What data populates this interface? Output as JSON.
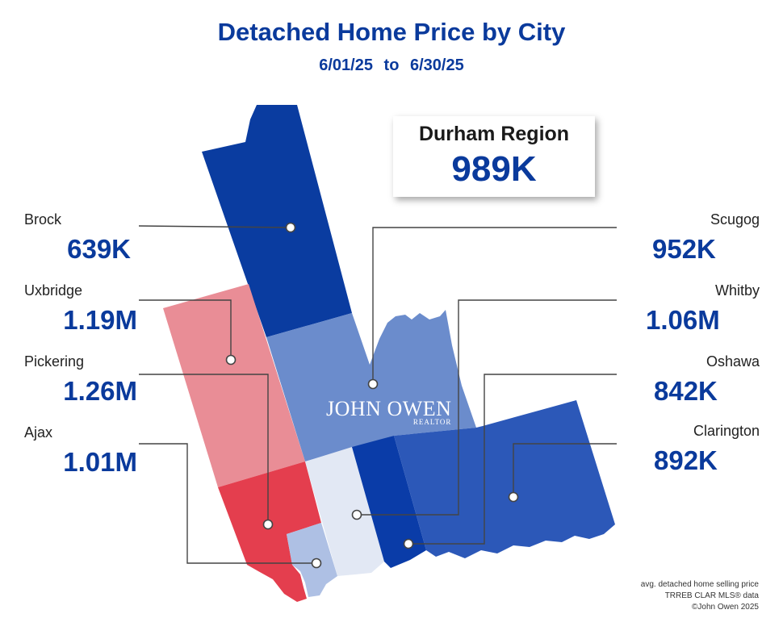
{
  "header": {
    "title": "Detached Home Price by City",
    "date_from": "6/01/25",
    "date_sep": "to",
    "date_to": "6/30/25"
  },
  "region": {
    "name": "Durham Region",
    "value": "989K"
  },
  "cities": {
    "brock": {
      "name": "Brock",
      "value": "639K",
      "color": "#0a3ca0"
    },
    "uxbridge": {
      "name": "Uxbridge",
      "value": "1.19M",
      "color": "#e98d96"
    },
    "pickering": {
      "name": "Pickering",
      "value": "1.26M",
      "color": "#e43e4e"
    },
    "ajax": {
      "name": "Ajax",
      "value": "1.01M",
      "color": "#aec0e4"
    },
    "scugog": {
      "name": "Scugog",
      "value": "952K",
      "color": "#6b8ccc"
    },
    "whitby": {
      "name": "Whitby",
      "value": "1.06M",
      "color": "#e2e8f4"
    },
    "oshawa": {
      "name": "Oshawa",
      "value": "842K",
      "color": "#0a3ca8"
    },
    "clarington": {
      "name": "Clarington",
      "value": "892K",
      "color": "#2c58b8"
    }
  },
  "logo": {
    "main": "JOHN OWEN",
    "sub": "REALTOR"
  },
  "footnote": {
    "line1": "avg. detached home selling price",
    "line2": "TRREB CLAR MLS® data",
    "line3": "©John Owen 2025"
  }
}
